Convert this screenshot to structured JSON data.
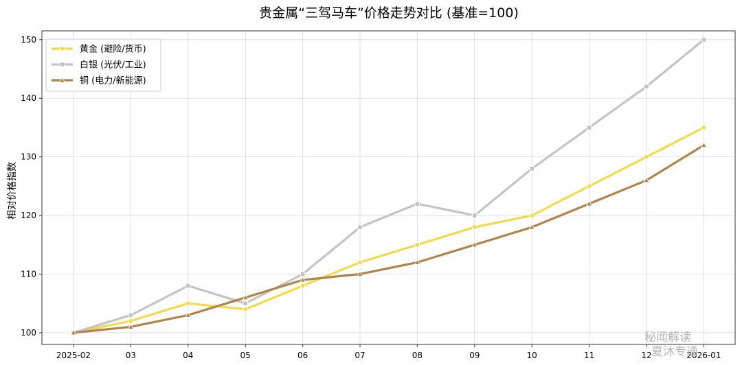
{
  "chart_data": {
    "type": "line",
    "title": "贵金属“三驾马车”价格走势对比 (基准=100)",
    "xlabel": "",
    "ylabel": "相对价格指数",
    "categories": [
      "2025-02",
      "03",
      "04",
      "05",
      "06",
      "07",
      "08",
      "09",
      "10",
      "11",
      "12",
      "2026-01"
    ],
    "ylim": [
      98,
      151.5
    ],
    "yticks": [
      100,
      110,
      120,
      130,
      140,
      150
    ],
    "grid": true,
    "legend_position": "top-left",
    "series": [
      {
        "name": "黄金 (避险/货币)",
        "color": "#f2d94e",
        "marker": "circle",
        "values": [
          100,
          102,
          105,
          104,
          108,
          112,
          115,
          118,
          120,
          125,
          130,
          135
        ]
      },
      {
        "name": "白银 (光伏/工业)",
        "color": "#c4c4c4",
        "marker": "square",
        "values": [
          100,
          103,
          108,
          105,
          110,
          118,
          122,
          120,
          128,
          135,
          142,
          150
        ]
      },
      {
        "name": "铜 (电力/新能源)",
        "color": "#b0844c",
        "marker": "triangle",
        "values": [
          100,
          101,
          103,
          106,
          109,
          110,
          112,
          115,
          118,
          122,
          126,
          132
        ]
      }
    ]
  },
  "watermark": {
    "line1": "秘闻解读",
    "line2": "夏沐专通"
  }
}
